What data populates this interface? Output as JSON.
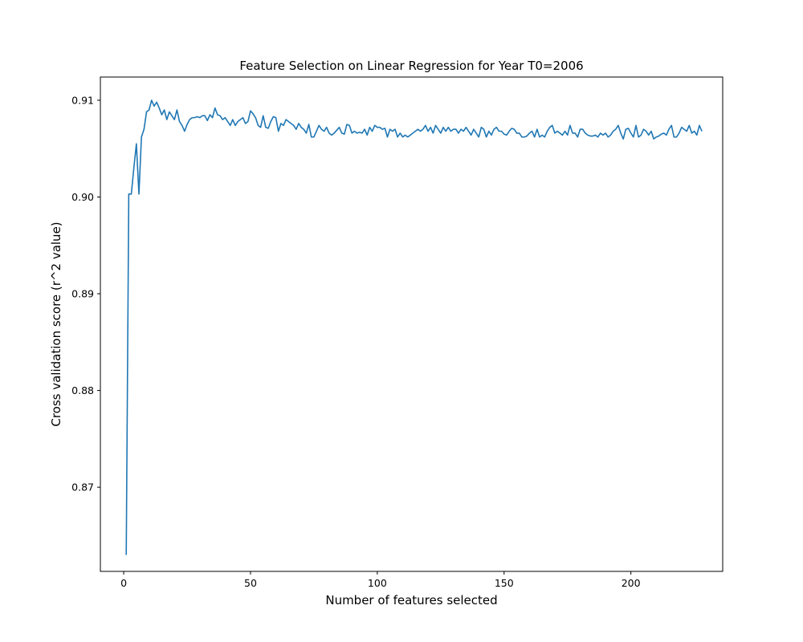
{
  "chart_data": {
    "type": "line",
    "title": "Feature Selection on Linear Regression for Year T0=2006",
    "xlabel": "Number of features selected",
    "ylabel": "Cross validation score (r^2 value)",
    "xlim": [
      -9.2,
      236.2
    ],
    "ylim": [
      0.8613,
      0.9124
    ],
    "xticks": [
      0,
      50,
      100,
      150,
      200
    ],
    "xtick_labels": [
      "0",
      "50",
      "100",
      "150",
      "200"
    ],
    "yticks": [
      0.87,
      0.88,
      0.89,
      0.9,
      0.91
    ],
    "ytick_labels": [
      "0.87",
      "0.88",
      "0.89",
      "0.90",
      "0.91"
    ],
    "grid": false,
    "line_color": "#1f77b4",
    "series": [
      {
        "x_start": 1,
        "values": [
          0.863,
          0.9003,
          0.9003,
          0.903,
          0.9055,
          0.9003,
          0.9062,
          0.907,
          0.9088,
          0.909,
          0.91,
          0.9094,
          0.9098,
          0.9092,
          0.9085,
          0.909,
          0.908,
          0.9088,
          0.9084,
          0.908,
          0.909,
          0.9078,
          0.9074,
          0.9068,
          0.9075,
          0.908,
          0.9082,
          0.9082,
          0.9083,
          0.9082,
          0.9084,
          0.9084,
          0.9079,
          0.9085,
          0.9082,
          0.9092,
          0.9085,
          0.9084,
          0.908,
          0.9082,
          0.9078,
          0.9074,
          0.908,
          0.9074,
          0.9078,
          0.908,
          0.9082,
          0.9076,
          0.9078,
          0.9089,
          0.9086,
          0.9082,
          0.9074,
          0.9072,
          0.9084,
          0.9072,
          0.9071,
          0.9078,
          0.9083,
          0.9082,
          0.9068,
          0.9076,
          0.9074,
          0.908,
          0.9078,
          0.9076,
          0.9074,
          0.907,
          0.9076,
          0.9072,
          0.907,
          0.9066,
          0.9075,
          0.9062,
          0.9062,
          0.9068,
          0.9074,
          0.907,
          0.9068,
          0.9072,
          0.9066,
          0.9064,
          0.9066,
          0.9069,
          0.9072,
          0.9066,
          0.9065,
          0.9075,
          0.9074,
          0.9066,
          0.9068,
          0.9066,
          0.9067,
          0.9066,
          0.907,
          0.9064,
          0.9072,
          0.9068,
          0.9074,
          0.9072,
          0.9072,
          0.907,
          0.9071,
          0.9062,
          0.907,
          0.9068,
          0.907,
          0.9062,
          0.9066,
          0.9062,
          0.9064,
          0.9062,
          0.9064,
          0.9066,
          0.9068,
          0.907,
          0.9068,
          0.907,
          0.9074,
          0.9068,
          0.9072,
          0.9066,
          0.9074,
          0.907,
          0.9066,
          0.9072,
          0.9068,
          0.9072,
          0.9068,
          0.907,
          0.907,
          0.9066,
          0.907,
          0.9068,
          0.9072,
          0.9068,
          0.9064,
          0.907,
          0.9066,
          0.9062,
          0.9072,
          0.907,
          0.9062,
          0.9068,
          0.9064,
          0.907,
          0.9072,
          0.9068,
          0.9068,
          0.9065,
          0.9064,
          0.9068,
          0.9071,
          0.907,
          0.9066,
          0.9066,
          0.9062,
          0.9062,
          0.9063,
          0.9066,
          0.9068,
          0.9062,
          0.907,
          0.9062,
          0.9064,
          0.9062,
          0.9068,
          0.9072,
          0.9074,
          0.9066,
          0.9068,
          0.9066,
          0.9064,
          0.9068,
          0.9064,
          0.9074,
          0.9066,
          0.9066,
          0.9062,
          0.907,
          0.907,
          0.9066,
          0.9064,
          0.9063,
          0.9063,
          0.9064,
          0.9062,
          0.9066,
          0.9064,
          0.9066,
          0.9062,
          0.9064,
          0.9068,
          0.907,
          0.9074,
          0.9066,
          0.906,
          0.907,
          0.9071,
          0.9066,
          0.9062,
          0.9074,
          0.9062,
          0.9064,
          0.907,
          0.9068,
          0.9064,
          0.9068,
          0.906,
          0.9062,
          0.9063,
          0.9065,
          0.9066,
          0.9064,
          0.907,
          0.9074,
          0.9062,
          0.9062,
          0.9066,
          0.9072,
          0.907,
          0.9068,
          0.9074,
          0.9066,
          0.9068,
          0.9064,
          0.9074,
          0.9068
        ]
      }
    ]
  }
}
